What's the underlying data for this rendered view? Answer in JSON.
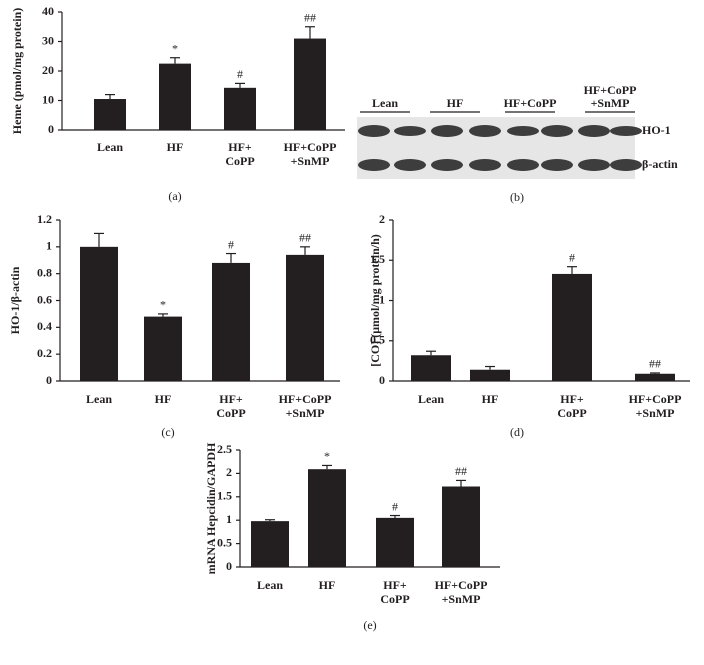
{
  "chart_data": [
    {
      "type": "bar",
      "panel": "(a)",
      "ylabel": "Heme (pmol/mg protein)",
      "categories": [
        [
          "Lean"
        ],
        [
          "HF"
        ],
        [
          "HF+",
          "CoPP"
        ],
        [
          "HF+CoPP",
          "+SnMP"
        ]
      ],
      "values": [
        10.5,
        22.5,
        14.3,
        31
      ],
      "errors": [
        1.5,
        2,
        1.5,
        4
      ],
      "annotations": [
        null,
        "*",
        "#",
        "##"
      ],
      "color": "#231f20",
      "ylim": [
        0,
        40
      ],
      "yticks": [
        0,
        10,
        20,
        30,
        40
      ]
    },
    {
      "type": "blot",
      "panel": "(b)",
      "lane_groups": [
        [
          "Lean"
        ],
        [
          "HF"
        ],
        [
          "HF+CoPP"
        ],
        [
          "HF+CoPP",
          "+SnMP"
        ]
      ],
      "rows": [
        "HO-1",
        "β-actin"
      ]
    },
    {
      "type": "bar",
      "panel": "(c)",
      "ylabel": "HO-1/β-actin",
      "categories": [
        [
          "Lean"
        ],
        [
          "HF"
        ],
        [
          "HF+",
          "CoPP"
        ],
        [
          "HF+CoPP",
          "+SnMP"
        ]
      ],
      "values": [
        1.0,
        0.48,
        0.88,
        0.94
      ],
      "errors": [
        0.1,
        0.02,
        0.07,
        0.06
      ],
      "annotations": [
        null,
        "*",
        "#",
        "##"
      ],
      "color": "#231f20",
      "ylim": [
        0,
        1.2
      ],
      "yticks": [
        0,
        0.2,
        0.4,
        0.6,
        0.8,
        1,
        1.2
      ]
    },
    {
      "type": "bar",
      "panel": "(d)",
      "ylabel": "[CO] (μmol/mg protein/h)",
      "categories": [
        [
          "Lean"
        ],
        [
          "HF"
        ],
        [
          "HF+",
          "CoPP"
        ],
        [
          "HF+CoPP",
          "+SnMP"
        ]
      ],
      "values": [
        0.32,
        0.14,
        1.33,
        0.09
      ],
      "errors": [
        0.05,
        0.04,
        0.09,
        0.01
      ],
      "annotations": [
        null,
        null,
        "#",
        "##"
      ],
      "color": "#231f20",
      "ylim": [
        0,
        2
      ],
      "yticks": [
        0,
        0.5,
        1,
        1.5,
        2
      ]
    },
    {
      "type": "bar",
      "panel": "(e)",
      "ylabel": "mRNA Hepcidin/GAPDH",
      "categories": [
        [
          "Lean"
        ],
        [
          "HF"
        ],
        [
          "HF+",
          "CoPP"
        ],
        [
          "HF+CoPP",
          "+SnMP"
        ]
      ],
      "values": [
        0.98,
        2.09,
        1.05,
        1.72
      ],
      "errors": [
        0.03,
        0.08,
        0.05,
        0.13
      ],
      "annotations": [
        null,
        "*",
        "#",
        "##"
      ],
      "color": "#231f20",
      "ylim": [
        0,
        2.5
      ],
      "yticks": [
        0,
        0.5,
        1,
        1.5,
        2,
        2.5
      ]
    }
  ]
}
